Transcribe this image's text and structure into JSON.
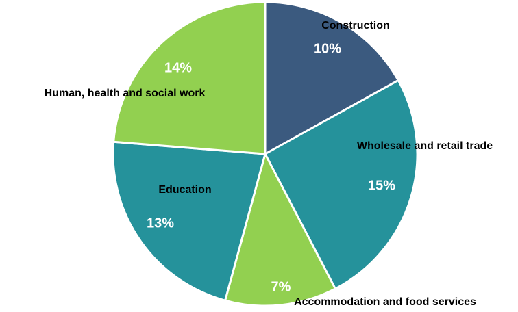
{
  "chart_data": {
    "type": "pie",
    "categories": [
      "Construction",
      "Wholesale and retail trade",
      "Accommodation and food services",
      "Education",
      "Human, health and social work"
    ],
    "values": [
      10,
      15,
      7,
      13,
      14
    ],
    "value_labels": [
      "10%",
      "15%",
      "7%",
      "13%",
      "14%"
    ],
    "colors": [
      "#3b5a7f",
      "#25929b",
      "#92d050",
      "#25929b",
      "#92d050"
    ]
  }
}
